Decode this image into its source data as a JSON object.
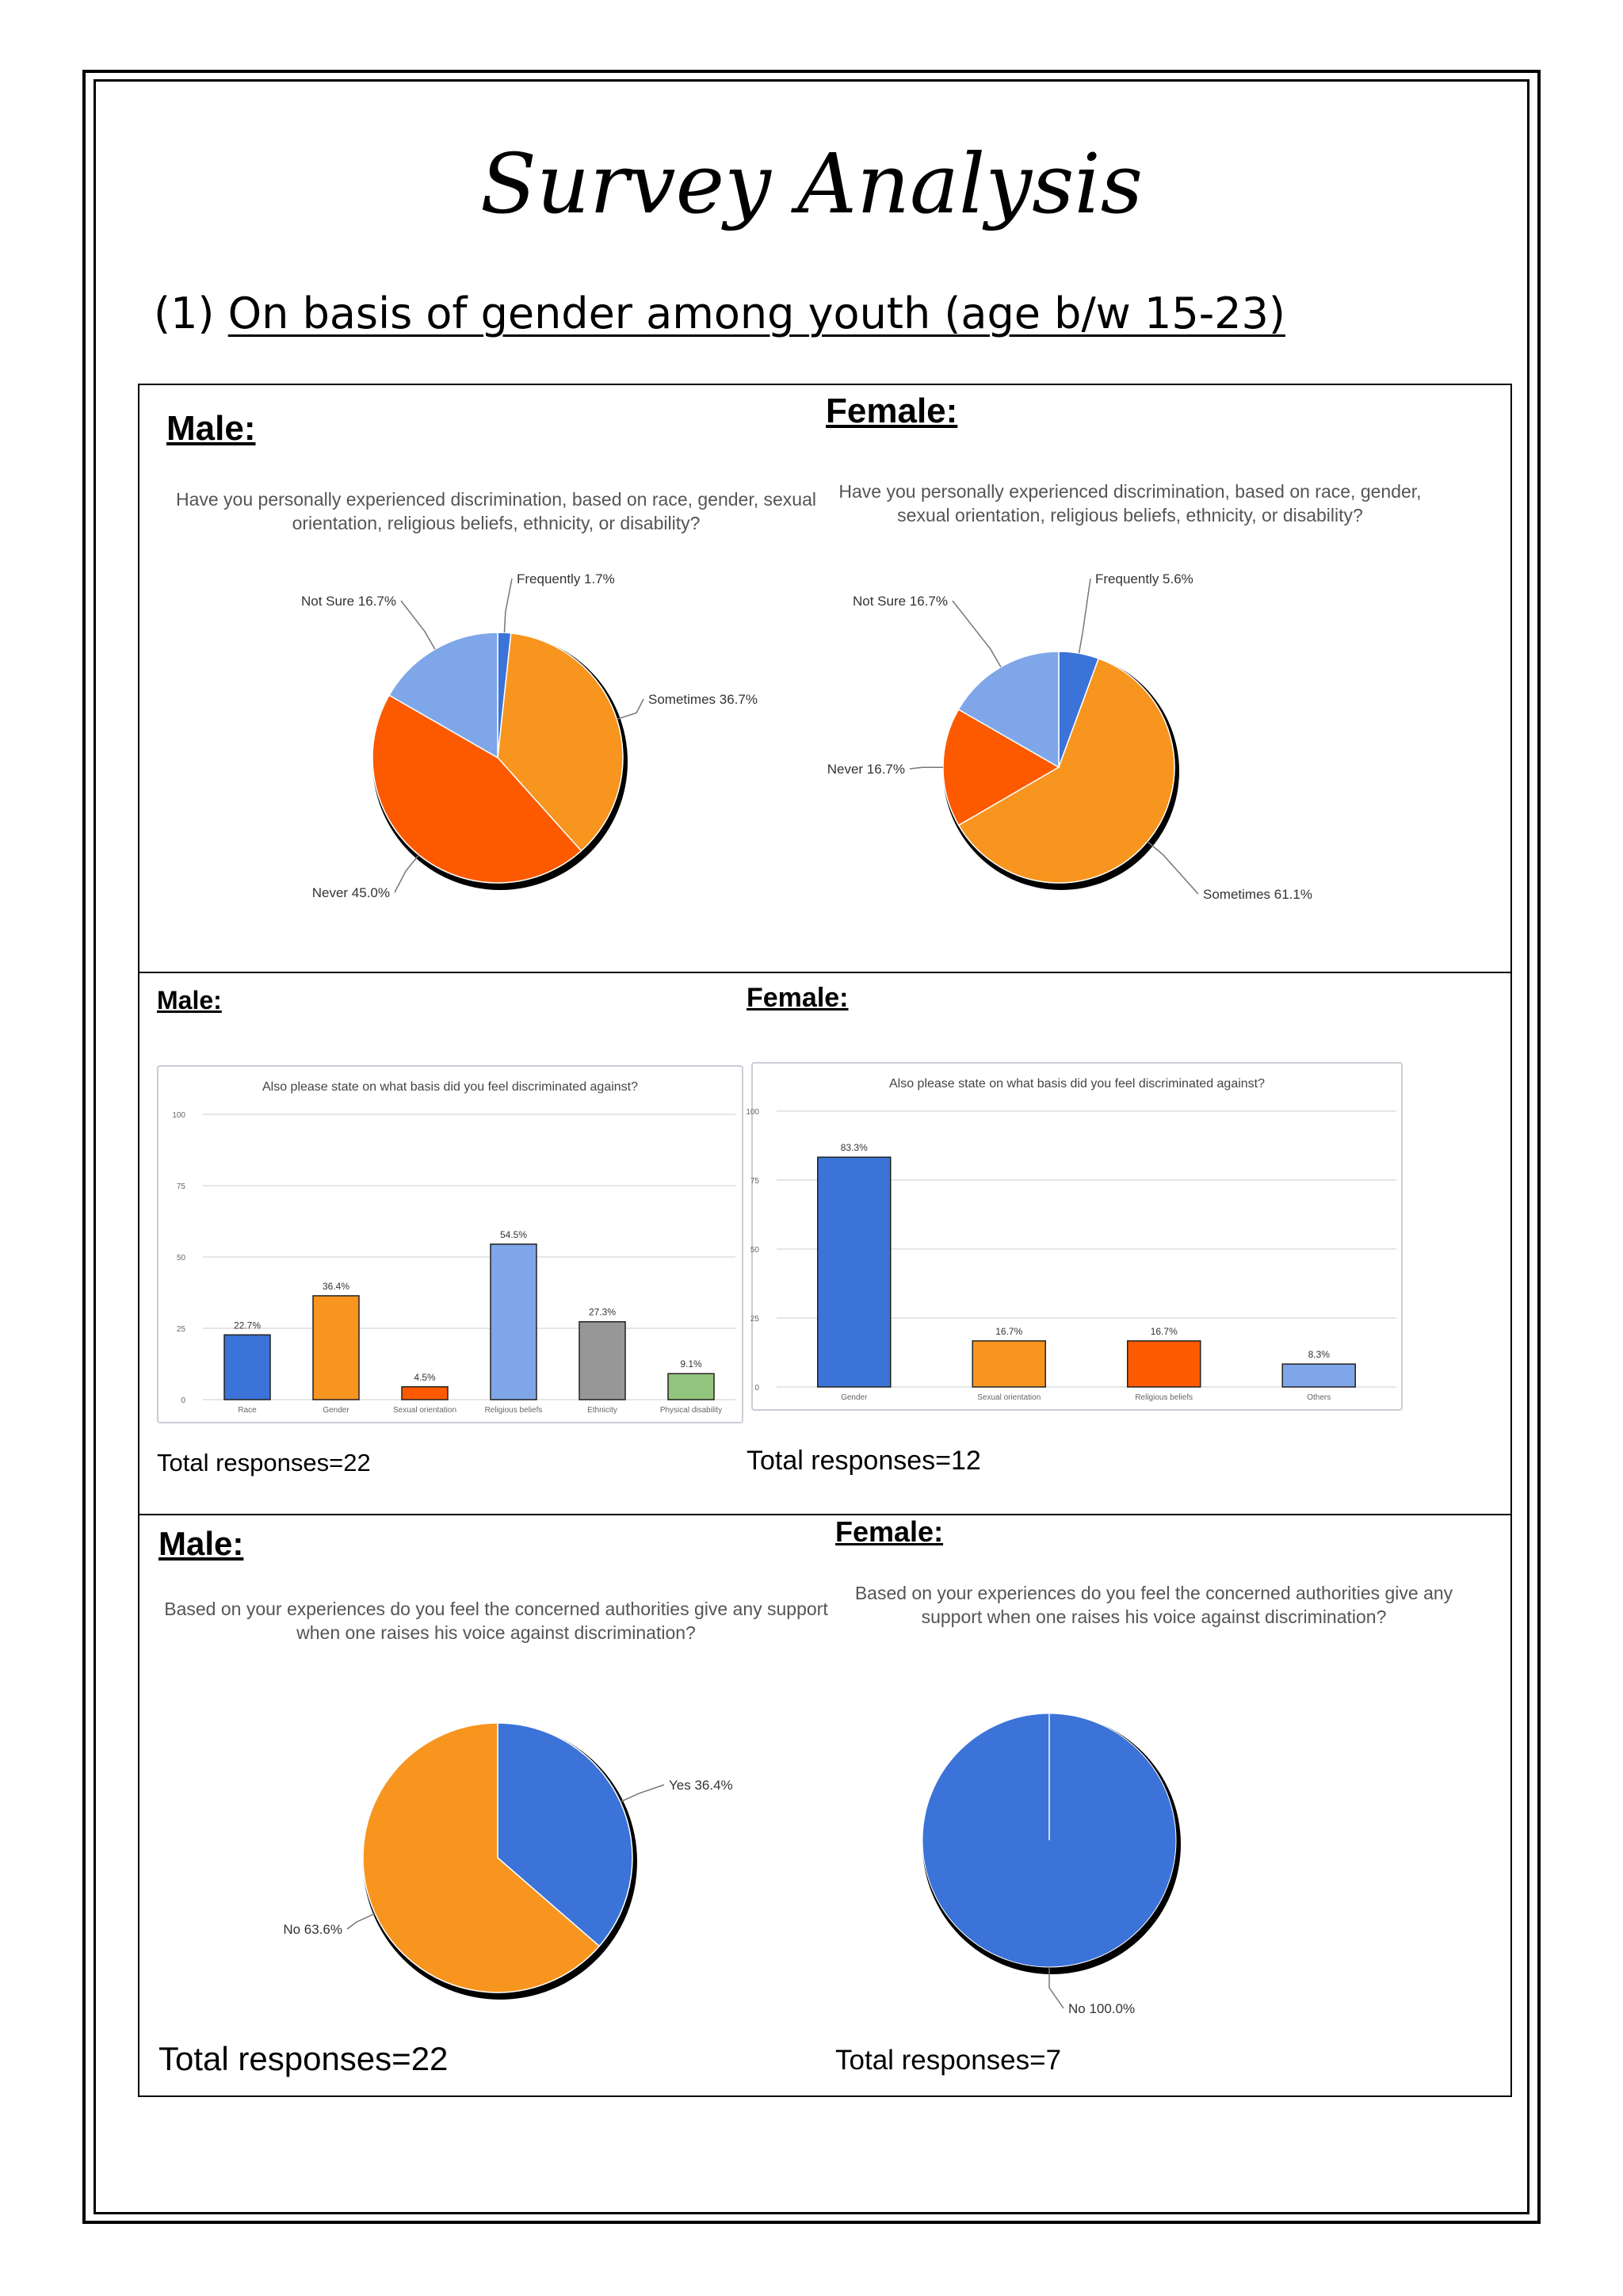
{
  "title": "Survey Analysis",
  "section": {
    "number": "(1)",
    "heading": "On basis of gender among youth (age b/w 15-23)"
  },
  "colors": {
    "blue": "#3b73d8",
    "orange": "#f7951f",
    "red_orange": "#fd5a00",
    "light_blue": "#7fa6e8",
    "gray": "#979797",
    "green": "#93c47d"
  },
  "row1": {
    "male": {
      "label": "Male:",
      "chart_data": {
        "type": "pie",
        "title": "Have you personally experienced discrimination, based on race, gender, sexual orientation, religious beliefs, ethnicity, or disability?",
        "slices": [
          {
            "name": "Frequently",
            "value": 1.7,
            "label": "Frequently 1.7%",
            "color": "#3b73d8"
          },
          {
            "name": "Sometimes",
            "value": 36.7,
            "label": "Sometimes 36.7%",
            "color": "#f7951f"
          },
          {
            "name": "Never",
            "value": 45.0,
            "label": "Never 45.0%",
            "color": "#fd5a00"
          },
          {
            "name": "Not Sure",
            "value": 16.7,
            "label": "Not Sure 16.7%",
            "color": "#7fa6e8"
          }
        ]
      }
    },
    "female": {
      "label": "Female:",
      "chart_data": {
        "type": "pie",
        "title": "Have you personally experienced discrimination, based on race, gender, sexual orientation, religious beliefs, ethnicity, or disability?",
        "slices": [
          {
            "name": "Frequently",
            "value": 5.6,
            "label": "Frequently 5.6%",
            "color": "#3b73d8"
          },
          {
            "name": "Sometimes",
            "value": 61.1,
            "label": "Sometimes 61.1%",
            "color": "#f7951f"
          },
          {
            "name": "Never",
            "value": 16.7,
            "label": "Never 16.7%",
            "color": "#fd5a00"
          },
          {
            "name": "Not Sure",
            "value": 16.7,
            "label": "Not Sure 16.7%",
            "color": "#7fa6e8"
          }
        ]
      }
    }
  },
  "row2": {
    "male": {
      "label": "Male:",
      "total": "Total responses=22",
      "chart_data": {
        "type": "bar",
        "title": "Also please state on what basis did you feel discriminated against?",
        "categories": [
          "Race",
          "Gender",
          "Sexual orientation",
          "Religious beliefs",
          "Ethnicity",
          "Physical disability"
        ],
        "values": [
          22.7,
          36.4,
          4.5,
          54.5,
          27.3,
          9.1
        ],
        "data_labels": [
          "22.7%",
          "36.4%",
          "4.5%",
          "54.5%",
          "27.3%",
          "9.1%"
        ],
        "colors": [
          "#3b73d8",
          "#f7951f",
          "#fd5a00",
          "#7fa6e8",
          "#979797",
          "#93c47d"
        ],
        "ylim": [
          0,
          100
        ],
        "yticks": [
          "0",
          "25",
          "50",
          "75",
          "100"
        ]
      }
    },
    "female": {
      "label": "Female:",
      "total": "Total responses=12",
      "chart_data": {
        "type": "bar",
        "title": "Also please state on what basis did you feel discriminated against?",
        "categories": [
          "Gender",
          "Sexual orientation",
          "Religious beliefs",
          "Others"
        ],
        "values": [
          83.3,
          16.7,
          16.7,
          8.3
        ],
        "data_labels": [
          "83.3%",
          "16.7%",
          "16.7%",
          "8.3%"
        ],
        "colors": [
          "#3b73d8",
          "#f7951f",
          "#fd5a00",
          "#7fa6e8"
        ],
        "ylim": [
          0,
          100
        ],
        "yticks": [
          "0",
          "25",
          "50",
          "75",
          "100"
        ]
      }
    }
  },
  "row3": {
    "male": {
      "label": "Male:",
      "total": "Total responses=22",
      "chart_data": {
        "type": "pie",
        "title": "Based on your experiences do you feel the concerned authorities give any support when one raises his voice against discrimination?",
        "slices": [
          {
            "name": "Yes",
            "value": 36.4,
            "label": "Yes 36.4%",
            "color": "#3b73d8"
          },
          {
            "name": "No",
            "value": 63.6,
            "label": "No 63.6%",
            "color": "#f7951f"
          }
        ]
      }
    },
    "female": {
      "label": "Female:",
      "total": "Total responses=7",
      "chart_data": {
        "type": "pie",
        "title": "Based on your experiences do you feel the concerned authorities give any support when one raises his voice against discrimination?",
        "slices": [
          {
            "name": "No",
            "value": 100.0,
            "label": "No 100.0%",
            "color": "#3b73d8"
          }
        ]
      }
    }
  }
}
